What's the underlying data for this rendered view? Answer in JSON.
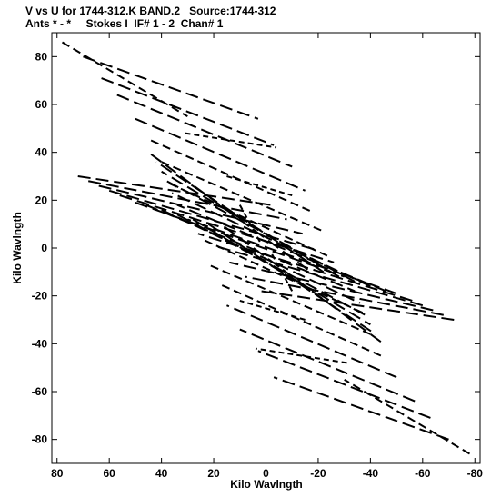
{
  "header": {
    "line1": "V vs U for 1744-312.K BAND.2   Source:1744-312",
    "line2": "Ants * - *     Stokes I  IF# 1 - 2  Chan# 1"
  },
  "chart_data": {
    "type": "scatter",
    "xlabel": "Kilo Wavlngth",
    "ylabel": "Kilo Wavlngth",
    "xlim": [
      82,
      -82
    ],
    "ylim": [
      -90,
      90
    ],
    "x_inverted": true,
    "xticks": [
      80,
      60,
      40,
      20,
      0,
      -20,
      -40,
      -60,
      -80
    ],
    "yticks": [
      80,
      60,
      40,
      20,
      0,
      -20,
      -40,
      -60,
      -80
    ],
    "grid": false,
    "marker": "dash-track",
    "uv_tracks": [
      {
        "start": [
          78,
          86
        ],
        "end": [
          30,
          55
        ]
      },
      {
        "start": [
          70,
          80
        ],
        "end": [
          3,
          54
        ]
      },
      {
        "start": [
          63,
          71
        ],
        "end": [
          -3,
          43
        ]
      },
      {
        "start": [
          57,
          64
        ],
        "end": [
          -10,
          34
        ]
      },
      {
        "start": [
          50,
          54
        ],
        "end": [
          -15,
          24
        ]
      },
      {
        "start": [
          44,
          45
        ],
        "end": [
          -18,
          15
        ]
      },
      {
        "start": [
          40,
          36
        ],
        "end": [
          -22,
          7
        ]
      },
      {
        "start": [
          37,
          27
        ],
        "end": [
          -25,
          -4
        ]
      },
      {
        "start": [
          72,
          30
        ],
        "end": [
          -2,
          18
        ]
      },
      {
        "start": [
          68,
          28
        ],
        "end": [
          -8,
          12
        ]
      },
      {
        "start": [
          64,
          26
        ],
        "end": [
          -14,
          6
        ]
      },
      {
        "start": [
          60,
          24
        ],
        "end": [
          -20,
          -1
        ]
      },
      {
        "start": [
          56,
          22
        ],
        "end": [
          -26,
          -6
        ]
      },
      {
        "start": [
          50,
          19
        ],
        "end": [
          -30,
          -12
        ]
      },
      {
        "start": [
          46,
          18
        ],
        "end": [
          -34,
          -18
        ]
      },
      {
        "start": [
          40,
          16
        ],
        "end": [
          -36,
          -23
        ]
      },
      {
        "start": [
          34,
          14
        ],
        "end": [
          -38,
          -28
        ]
      },
      {
        "start": [
          28,
          12
        ],
        "end": [
          -40,
          -32
        ]
      },
      {
        "start": [
          22,
          10
        ],
        "end": [
          -42,
          -36
        ]
      },
      {
        "start": [
          16,
          9
        ],
        "end": [
          -45,
          -40
        ]
      },
      {
        "start": [
          -78,
          -86
        ],
        "end": [
          -30,
          -55
        ]
      },
      {
        "start": [
          -70,
          -80
        ],
        "end": [
          -3,
          -54
        ]
      },
      {
        "start": [
          -63,
          -71
        ],
        "end": [
          3,
          -43
        ]
      },
      {
        "start": [
          -57,
          -64
        ],
        "end": [
          10,
          -34
        ]
      },
      {
        "start": [
          -50,
          -54
        ],
        "end": [
          15,
          -24
        ]
      },
      {
        "start": [
          -44,
          -45
        ],
        "end": [
          18,
          -15
        ]
      },
      {
        "start": [
          -40,
          -36
        ],
        "end": [
          22,
          -7
        ]
      },
      {
        "start": [
          -37,
          -27
        ],
        "end": [
          25,
          4
        ]
      },
      {
        "start": [
          -72,
          -30
        ],
        "end": [
          2,
          -18
        ]
      },
      {
        "start": [
          -68,
          -28
        ],
        "end": [
          8,
          -12
        ]
      },
      {
        "start": [
          -64,
          -26
        ],
        "end": [
          14,
          -6
        ]
      },
      {
        "start": [
          -60,
          -24
        ],
        "end": [
          20,
          1
        ]
      },
      {
        "start": [
          -56,
          -22
        ],
        "end": [
          26,
          6
        ]
      },
      {
        "start": [
          -50,
          -19
        ],
        "end": [
          30,
          12
        ]
      },
      {
        "start": [
          -46,
          -18
        ],
        "end": [
          34,
          18
        ]
      },
      {
        "start": [
          -40,
          -16
        ],
        "end": [
          36,
          23
        ]
      },
      {
        "start": [
          -34,
          -14
        ],
        "end": [
          38,
          28
        ]
      },
      {
        "start": [
          -28,
          -12
        ],
        "end": [
          40,
          32
        ]
      },
      {
        "start": [
          -22,
          -10
        ],
        "end": [
          42,
          36
        ]
      },
      {
        "start": [
          -16,
          -9
        ],
        "end": [
          45,
          40
        ]
      },
      {
        "start": [
          31,
          48
        ],
        "end": [
          -4,
          42
        ]
      },
      {
        "start": [
          -31,
          -48
        ],
        "end": [
          4,
          -42
        ]
      },
      {
        "start": [
          15,
          30
        ],
        "end": [
          -10,
          22
        ]
      },
      {
        "start": [
          -15,
          -30
        ],
        "end": [
          10,
          -22
        ]
      },
      {
        "start": [
          10,
          18
        ],
        "end": [
          2,
          2
        ]
      },
      {
        "start": [
          -10,
          -18
        ],
        "end": [
          -2,
          -2
        ]
      }
    ]
  }
}
